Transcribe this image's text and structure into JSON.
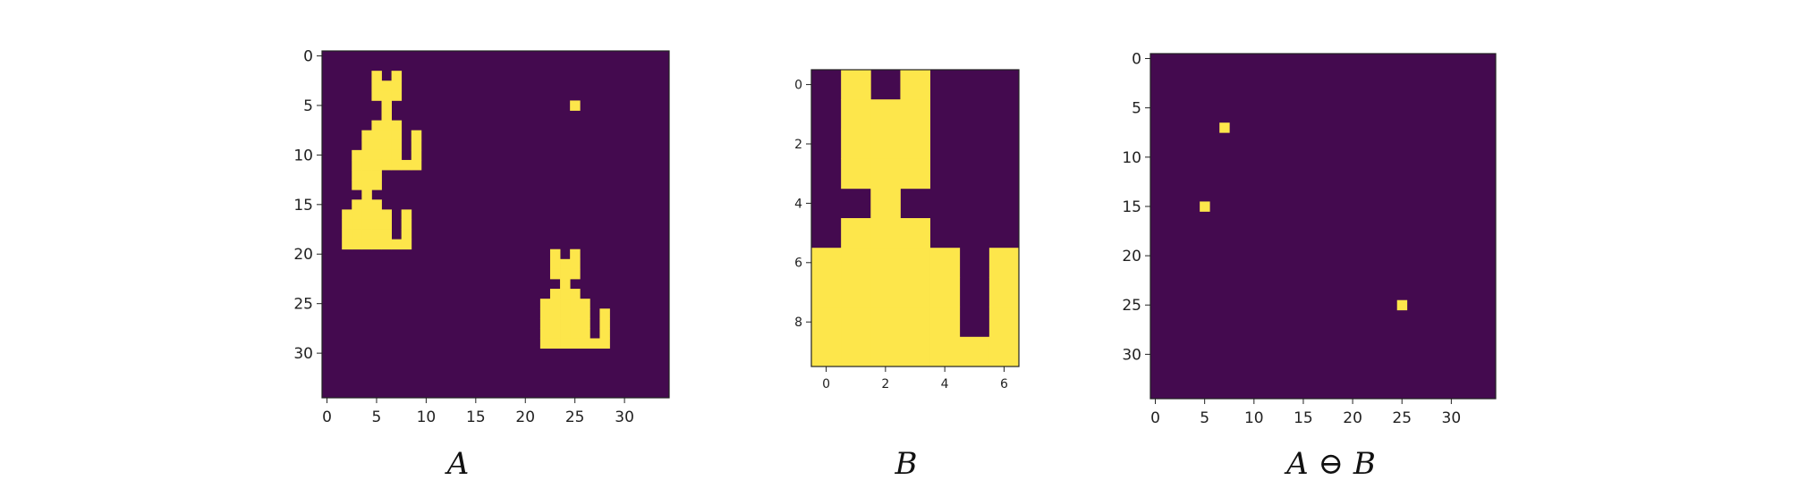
{
  "colors": {
    "background": "#440a4f",
    "foreground": "#fde64b",
    "axis": "#222222"
  },
  "chart_data": [
    {
      "type": "heatmap",
      "caption": "A",
      "rows": 35,
      "cols": 35,
      "xticks": [
        0,
        5,
        10,
        15,
        20,
        25,
        30
      ],
      "yticks": [
        0,
        5,
        10,
        15,
        20,
        25,
        30
      ],
      "cells": [
        [
          2,
          5
        ],
        [
          2,
          7
        ],
        [
          3,
          5
        ],
        [
          3,
          6
        ],
        [
          3,
          7
        ],
        [
          4,
          5
        ],
        [
          4,
          6
        ],
        [
          4,
          7
        ],
        [
          5,
          6
        ],
        [
          6,
          6
        ],
        [
          7,
          5
        ],
        [
          7,
          6
        ],
        [
          7,
          7
        ],
        [
          8,
          4
        ],
        [
          8,
          5
        ],
        [
          8,
          6
        ],
        [
          8,
          7
        ],
        [
          8,
          9
        ],
        [
          9,
          4
        ],
        [
          9,
          5
        ],
        [
          9,
          6
        ],
        [
          9,
          7
        ],
        [
          9,
          9
        ],
        [
          10,
          3
        ],
        [
          10,
          4
        ],
        [
          10,
          5
        ],
        [
          10,
          6
        ],
        [
          10,
          7
        ],
        [
          10,
          9
        ],
        [
          11,
          3
        ],
        [
          11,
          4
        ],
        [
          11,
          5
        ],
        [
          11,
          6
        ],
        [
          11,
          7
        ],
        [
          11,
          8
        ],
        [
          11,
          9
        ],
        [
          12,
          3
        ],
        [
          12,
          4
        ],
        [
          12,
          5
        ],
        [
          13,
          3
        ],
        [
          13,
          4
        ],
        [
          13,
          5
        ],
        [
          14,
          4
        ],
        [
          15,
          3
        ],
        [
          15,
          4
        ],
        [
          15,
          5
        ],
        [
          16,
          2
        ],
        [
          16,
          3
        ],
        [
          16,
          4
        ],
        [
          16,
          5
        ],
        [
          16,
          6
        ],
        [
          16,
          8
        ],
        [
          17,
          2
        ],
        [
          17,
          3
        ],
        [
          17,
          4
        ],
        [
          17,
          5
        ],
        [
          17,
          6
        ],
        [
          17,
          8
        ],
        [
          18,
          2
        ],
        [
          18,
          3
        ],
        [
          18,
          4
        ],
        [
          18,
          5
        ],
        [
          18,
          6
        ],
        [
          18,
          8
        ],
        [
          19,
          2
        ],
        [
          19,
          3
        ],
        [
          19,
          4
        ],
        [
          19,
          5
        ],
        [
          19,
          6
        ],
        [
          19,
          7
        ],
        [
          19,
          8
        ],
        [
          5,
          25
        ],
        [
          20,
          23
        ],
        [
          20,
          25
        ],
        [
          21,
          23
        ],
        [
          21,
          24
        ],
        [
          21,
          25
        ],
        [
          22,
          23
        ],
        [
          22,
          24
        ],
        [
          22,
          25
        ],
        [
          23,
          24
        ],
        [
          24,
          23
        ],
        [
          24,
          24
        ],
        [
          24,
          25
        ],
        [
          25,
          22
        ],
        [
          25,
          23
        ],
        [
          25,
          24
        ],
        [
          25,
          25
        ],
        [
          25,
          26
        ],
        [
          26,
          22
        ],
        [
          26,
          23
        ],
        [
          26,
          24
        ],
        [
          26,
          25
        ],
        [
          26,
          26
        ],
        [
          26,
          28
        ],
        [
          27,
          22
        ],
        [
          27,
          23
        ],
        [
          27,
          24
        ],
        [
          27,
          25
        ],
        [
          27,
          26
        ],
        [
          27,
          28
        ],
        [
          28,
          22
        ],
        [
          28,
          23
        ],
        [
          28,
          24
        ],
        [
          28,
          25
        ],
        [
          28,
          26
        ],
        [
          28,
          28
        ],
        [
          29,
          22
        ],
        [
          29,
          23
        ],
        [
          29,
          24
        ],
        [
          29,
          25
        ],
        [
          29,
          26
        ],
        [
          29,
          27
        ],
        [
          29,
          28
        ]
      ]
    },
    {
      "type": "heatmap",
      "caption": "B",
      "rows": 10,
      "cols": 7,
      "xticks": [
        0,
        2,
        4,
        6
      ],
      "yticks": [
        0,
        2,
        4,
        6,
        8
      ],
      "cells": [
        [
          0,
          1
        ],
        [
          0,
          3
        ],
        [
          1,
          1
        ],
        [
          1,
          2
        ],
        [
          1,
          3
        ],
        [
          2,
          1
        ],
        [
          2,
          2
        ],
        [
          2,
          3
        ],
        [
          3,
          1
        ],
        [
          3,
          2
        ],
        [
          3,
          3
        ],
        [
          4,
          2
        ],
        [
          5,
          1
        ],
        [
          5,
          2
        ],
        [
          5,
          3
        ],
        [
          6,
          0
        ],
        [
          6,
          1
        ],
        [
          6,
          2
        ],
        [
          6,
          3
        ],
        [
          6,
          4
        ],
        [
          6,
          6
        ],
        [
          7,
          0
        ],
        [
          7,
          1
        ],
        [
          7,
          2
        ],
        [
          7,
          3
        ],
        [
          7,
          4
        ],
        [
          7,
          6
        ],
        [
          8,
          0
        ],
        [
          8,
          1
        ],
        [
          8,
          2
        ],
        [
          8,
          3
        ],
        [
          8,
          4
        ],
        [
          8,
          6
        ],
        [
          9,
          0
        ],
        [
          9,
          1
        ],
        [
          9,
          2
        ],
        [
          9,
          3
        ],
        [
          9,
          4
        ],
        [
          9,
          5
        ],
        [
          9,
          6
        ]
      ]
    },
    {
      "type": "heatmap",
      "caption": "A ⊖ B",
      "rows": 35,
      "cols": 35,
      "xticks": [
        0,
        5,
        10,
        15,
        20,
        25,
        30
      ],
      "yticks": [
        0,
        5,
        10,
        15,
        20,
        25,
        30
      ],
      "cells": [
        [
          7,
          7
        ],
        [
          15,
          5
        ],
        [
          25,
          25
        ]
      ]
    }
  ]
}
